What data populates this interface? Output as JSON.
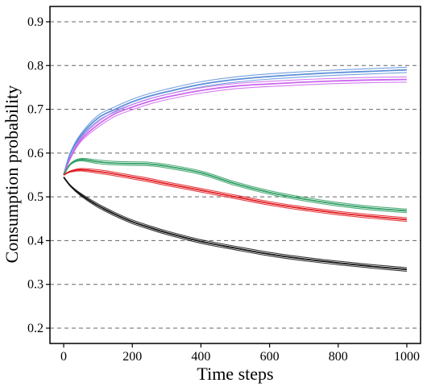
{
  "chart_data": {
    "type": "line",
    "title": "",
    "xlabel": "Time steps",
    "ylabel": "Consumption probability",
    "xlim": [
      -40,
      1040
    ],
    "ylim": [
      0.165,
      0.935
    ],
    "x_ticks": [
      0,
      200,
      400,
      600,
      800,
      1000
    ],
    "y_ticks": [
      0.2,
      0.3,
      0.4,
      0.5,
      0.6,
      0.7,
      0.8,
      0.9
    ],
    "x_tick_labels": [
      "0",
      "200",
      "400",
      "600",
      "800",
      "1000"
    ],
    "y_tick_labels": [
      "0.2",
      "0.3",
      "0.4",
      "0.5",
      "0.6",
      "0.7",
      "0.8",
      "0.9"
    ],
    "grid": "horizontal dashed at y ticks",
    "legend": "none",
    "x": [
      0,
      20,
      50,
      100,
      150,
      200,
      250,
      300,
      400,
      500,
      600,
      700,
      800,
      900,
      1000
    ],
    "series": [
      {
        "color": "#5b8fd9",
        "values": [
          0.55,
          0.6,
          0.64,
          0.68,
          0.7,
          0.717,
          0.73,
          0.74,
          0.757,
          0.768,
          0.775,
          0.78,
          0.784,
          0.787,
          0.79
        ],
        "band": 0.006
      },
      {
        "color": "#cc66ee",
        "values": [
          0.55,
          0.59,
          0.63,
          0.665,
          0.69,
          0.705,
          0.718,
          0.728,
          0.743,
          0.753,
          0.758,
          0.762,
          0.765,
          0.767,
          0.768
        ],
        "band": 0.006
      },
      {
        "color": "#2e9e62",
        "values": [
          0.55,
          0.575,
          0.585,
          0.58,
          0.577,
          0.576,
          0.575,
          0.57,
          0.555,
          0.53,
          0.51,
          0.495,
          0.483,
          0.474,
          0.468
        ],
        "band": 0.004
      },
      {
        "color": "#e0191e",
        "values": [
          0.55,
          0.558,
          0.562,
          0.558,
          0.552,
          0.545,
          0.538,
          0.53,
          0.515,
          0.5,
          0.485,
          0.473,
          0.463,
          0.455,
          0.448
        ],
        "band": 0.004
      },
      {
        "color": "#111111",
        "values": [
          0.545,
          0.525,
          0.505,
          0.48,
          0.46,
          0.443,
          0.43,
          0.418,
          0.398,
          0.383,
          0.369,
          0.358,
          0.349,
          0.341,
          0.334
        ],
        "band": 0.004
      }
    ]
  }
}
